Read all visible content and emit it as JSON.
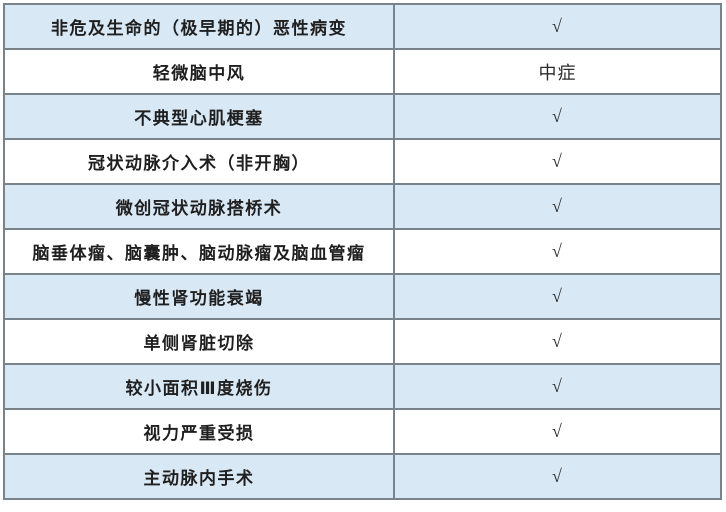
{
  "table": {
    "description": "benefits-coverage-table",
    "columns": [
      {
        "key": "condition",
        "role": "condition-name"
      },
      {
        "key": "coverage",
        "role": "coverage-mark"
      }
    ],
    "rows": [
      {
        "condition": "非危及生命的（极早期的）恶性病变",
        "coverage": "√"
      },
      {
        "condition": "轻微脑中风",
        "coverage": "中症"
      },
      {
        "condition": "不典型心肌梗塞",
        "coverage": "√"
      },
      {
        "condition": "冠状动脉介入术（非开胸）",
        "coverage": "√"
      },
      {
        "condition": "微创冠状动脉搭桥术",
        "coverage": "√"
      },
      {
        "condition": "脑垂体瘤、脑囊肿、脑动脉瘤及脑血管瘤",
        "coverage": "√"
      },
      {
        "condition": "慢性肾功能衰竭",
        "coverage": "√"
      },
      {
        "condition": "单侧肾脏切除",
        "coverage": "√"
      },
      {
        "condition": "较小面积Ⅲ度烧伤",
        "coverage": "√"
      },
      {
        "condition": "视力严重受损",
        "coverage": "√"
      },
      {
        "condition": "主动脉内手术",
        "coverage": "√"
      }
    ],
    "colors": {
      "row_alt_bg": "#d9e8f5",
      "row_bg": "#ffffff",
      "border": "#79838b",
      "text": "#1f1f1f",
      "mark": "#2b2b2b"
    },
    "layout": {
      "left_col_width": 390,
      "right_col_width": 327
    }
  }
}
